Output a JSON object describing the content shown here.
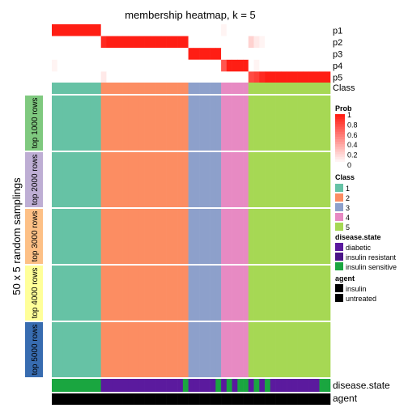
{
  "chart_data": {
    "type": "heatmap",
    "title": "membership heatmap, k = 5",
    "ylabel": "50 x 5 random samplings",
    "membership_rows": [
      "p1",
      "p2",
      "p3",
      "p4",
      "p5"
    ],
    "class_row_label": "Class",
    "sample_blocks": [
      {
        "label": "top 1000 rows",
        "color": "#7fc97f"
      },
      {
        "label": "top 2000 rows",
        "color": "#beaed4"
      },
      {
        "label": "top 3000 rows",
        "color": "#fdc086"
      },
      {
        "label": "top 4000 rows",
        "color": "#ffff99"
      },
      {
        "label": "top 5000 rows",
        "color": "#386cb0"
      }
    ],
    "columns": {
      "count": 51,
      "class_counts": [
        9,
        16,
        6,
        5,
        15
      ],
      "class_sequence": [
        1,
        1,
        1,
        1,
        1,
        1,
        1,
        1,
        1,
        2,
        2,
        2,
        2,
        2,
        2,
        2,
        2,
        2,
        2,
        2,
        2,
        2,
        2,
        2,
        2,
        3,
        3,
        3,
        3,
        3,
        3,
        4,
        4,
        4,
        4,
        4,
        5,
        5,
        5,
        5,
        5,
        5,
        5,
        5,
        5,
        5,
        5,
        5,
        5,
        5,
        5
      ],
      "disease_state_sequence": [
        "insulin sensitive",
        "insulin sensitive",
        "insulin sensitive",
        "insulin sensitive",
        "insulin sensitive",
        "insulin sensitive",
        "insulin sensitive",
        "insulin sensitive",
        "insulin sensitive",
        "diabetic",
        "diabetic",
        "diabetic",
        "diabetic",
        "diabetic",
        "diabetic",
        "diabetic",
        "diabetic",
        "diabetic",
        "diabetic",
        "diabetic",
        "diabetic",
        "diabetic",
        "diabetic",
        "diabetic",
        "insulin sensitive",
        "diabetic",
        "diabetic",
        "diabetic",
        "diabetic",
        "diabetic",
        "insulin sensitive",
        "diabetic",
        "insulin sensitive",
        "diabetic",
        "insulin sensitive",
        "insulin sensitive",
        "diabetic",
        "insulin sensitive",
        "diabetic",
        "insulin sensitive",
        "diabetic",
        "diabetic",
        "diabetic",
        "diabetic",
        "diabetic",
        "diabetic",
        "diabetic",
        "diabetic",
        "diabetic",
        "insulin sensitive",
        "insulin sensitive"
      ]
    },
    "membership": {
      "p1": [
        1,
        1,
        1,
        1,
        1,
        1,
        1,
        1,
        1,
        0,
        0,
        0,
        0,
        0,
        0,
        0,
        0,
        0,
        0,
        0,
        0,
        0,
        0,
        0,
        0,
        0,
        0,
        0,
        0,
        0,
        0,
        0.05,
        0,
        0,
        0,
        0,
        0,
        0,
        0,
        0,
        0,
        0,
        0,
        0,
        0,
        0,
        0,
        0,
        0,
        0,
        0
      ],
      "p2": [
        0,
        0,
        0,
        0,
        0,
        0,
        0,
        0,
        0,
        0.95,
        1,
        1,
        1,
        1,
        1,
        1,
        1,
        1,
        1,
        1,
        1,
        1,
        1,
        1,
        1,
        0,
        0,
        0,
        0,
        0,
        0,
        0,
        0,
        0,
        0,
        0,
        0.2,
        0.1,
        0.05,
        0,
        0,
        0,
        0,
        0,
        0,
        0,
        0,
        0,
        0,
        0,
        0
      ],
      "p3": [
        0,
        0,
        0,
        0,
        0,
        0,
        0,
        0,
        0,
        0,
        0,
        0,
        0,
        0,
        0,
        0,
        0,
        0,
        0,
        0,
        0,
        0,
        0,
        0,
        0,
        1,
        1,
        1,
        1,
        1,
        1,
        0,
        0,
        0,
        0,
        0,
        0,
        0,
        0,
        0,
        0,
        0,
        0,
        0,
        0,
        0,
        0,
        0,
        0,
        0,
        0
      ],
      "p4": [
        0.05,
        0,
        0,
        0,
        0,
        0,
        0,
        0,
        0,
        0,
        0,
        0,
        0,
        0,
        0,
        0,
        0,
        0,
        0,
        0,
        0,
        0,
        0,
        0,
        0,
        0,
        0,
        0,
        0,
        0,
        0,
        0.75,
        1,
        1,
        1,
        1,
        0,
        0.05,
        0,
        0,
        0,
        0,
        0,
        0,
        0,
        0,
        0,
        0,
        0,
        0,
        0
      ],
      "p5": [
        0,
        0,
        0,
        0,
        0,
        0,
        0,
        0,
        0,
        0.1,
        0,
        0,
        0,
        0,
        0,
        0,
        0,
        0,
        0,
        0,
        0,
        0,
        0,
        0,
        0,
        0,
        0,
        0,
        0,
        0,
        0,
        0,
        0,
        0,
        0,
        0,
        0.8,
        0.85,
        0.95,
        1,
        1,
        1,
        1,
        1,
        1,
        1,
        1,
        1,
        1,
        1,
        1
      ]
    },
    "bottom_annotations": [
      "disease.state",
      "agent"
    ],
    "legend": {
      "prob": {
        "title": "Prob",
        "ticks": [
          "1",
          "0.8",
          "0.6",
          "0.4",
          "0.2",
          "0"
        ]
      },
      "class": {
        "title": "Class",
        "items": [
          {
            "label": "1",
            "color": "#66c2a5"
          },
          {
            "label": "2",
            "color": "#fc8d62"
          },
          {
            "label": "3",
            "color": "#8da0cb"
          },
          {
            "label": "4",
            "color": "#e78ac3"
          },
          {
            "label": "5",
            "color": "#a6d854"
          }
        ]
      },
      "disease_state": {
        "title": "disease.state",
        "items": [
          {
            "label": "diabetic",
            "color": "#5b1a9e"
          },
          {
            "label": "insulin resistant",
            "color": "#4a1487"
          },
          {
            "label": "insulin sensitive",
            "color": "#1aa640"
          }
        ]
      },
      "agent": {
        "title": "agent",
        "items": [
          {
            "label": "insulin",
            "color": "#000000"
          },
          {
            "label": "untreated",
            "color": "#000000"
          }
        ]
      }
    }
  }
}
